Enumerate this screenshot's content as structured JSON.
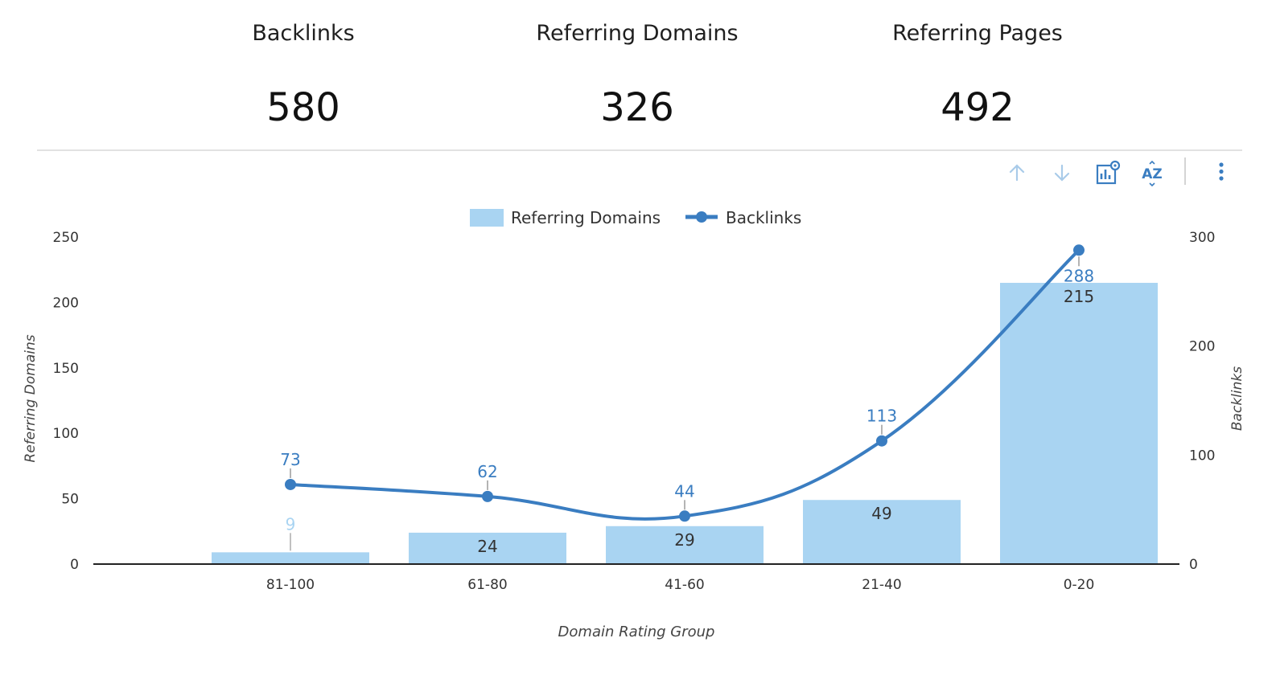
{
  "kpis": [
    {
      "label": "Backlinks",
      "value": "580"
    },
    {
      "label": "Referring Domains",
      "value": "326"
    },
    {
      "label": "Referring Pages",
      "value": "492"
    }
  ],
  "toolbar": {
    "icons": [
      "arrow-up-icon",
      "arrow-down-icon",
      "chart-settings-icon",
      "sort-az-icon",
      "more-vertical-icon"
    ],
    "sort_label": "AZ"
  },
  "colors": {
    "bar": "#a9d4f2",
    "line": "#3a7dc1",
    "axis": "#222222",
    "bar_label": "#333333",
    "small_bar_label": "#a9d4f2"
  },
  "chart_data": {
    "type": "bar",
    "categories": [
      "81-100",
      "61-80",
      "41-60",
      "21-40",
      "0-20"
    ],
    "series": [
      {
        "name": "Referring Domains",
        "type": "bar",
        "axis": "left",
        "values": [
          9,
          24,
          29,
          49,
          215
        ]
      },
      {
        "name": "Backlinks",
        "type": "line",
        "axis": "right",
        "values": [
          73,
          62,
          44,
          113,
          288
        ]
      }
    ],
    "xlabel": "Domain Rating Group",
    "ylabel_left": "Referring Domains",
    "ylabel_right": "Backlinks",
    "ylim_left": [
      0,
      250
    ],
    "ylim_right": [
      0,
      300
    ],
    "yticks_left": [
      0,
      50,
      100,
      150,
      200,
      250
    ],
    "yticks_right": [
      0,
      100,
      200,
      300
    ],
    "legend": "top-center",
    "grid": false
  }
}
